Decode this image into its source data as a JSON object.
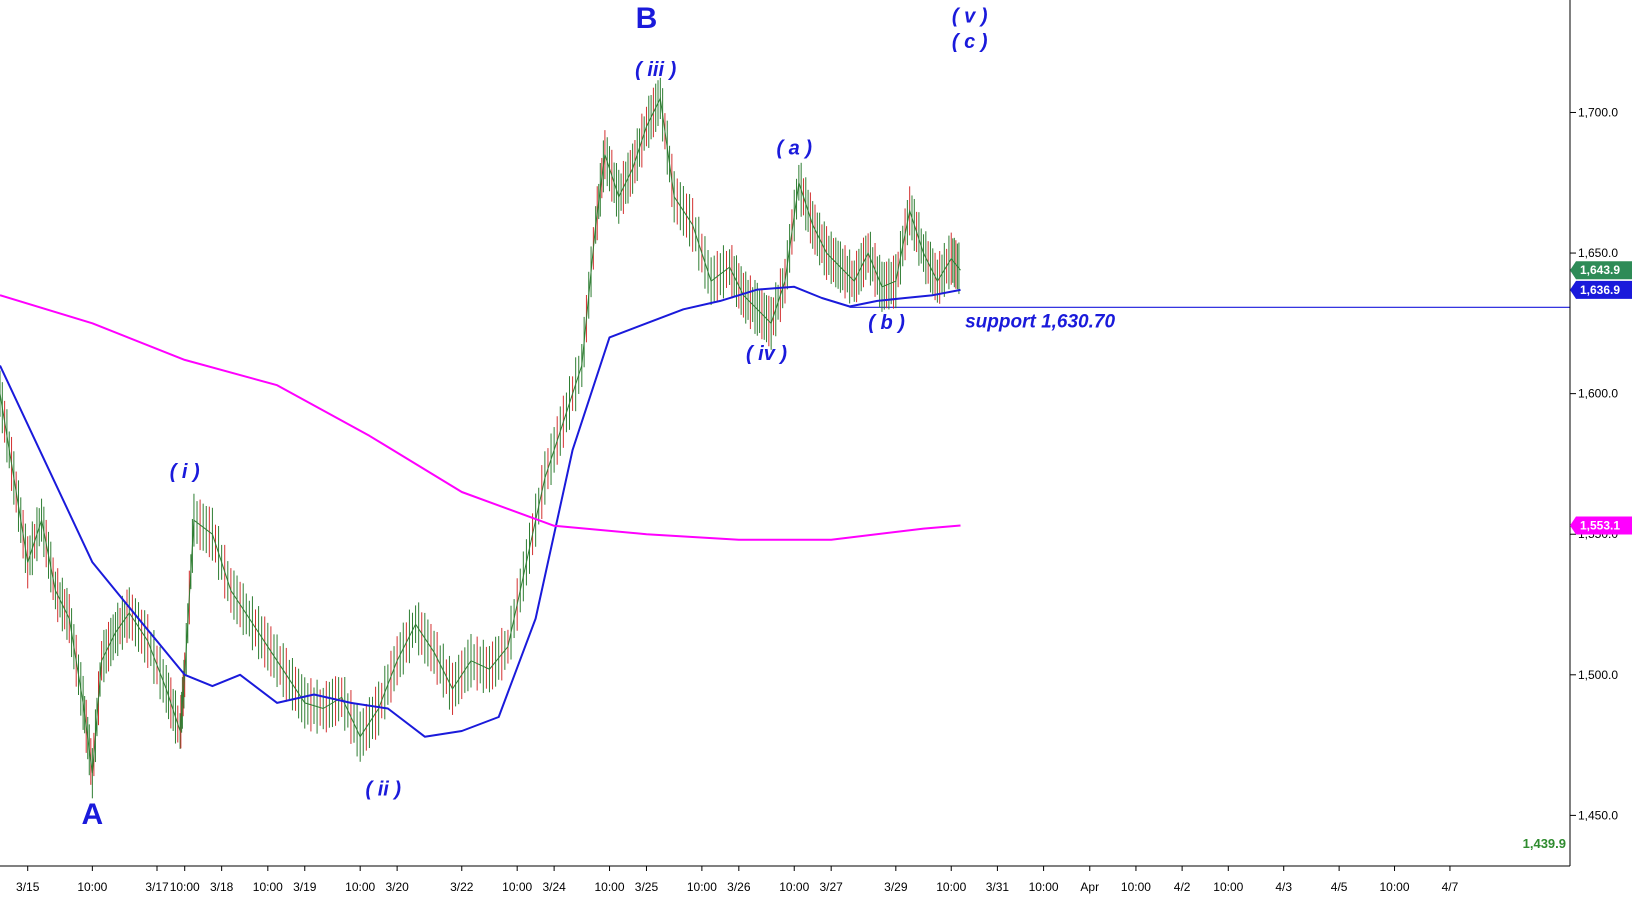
{
  "chart_data": {
    "type": "line",
    "title": "",
    "xlabel": "",
    "ylabel": "",
    "ylim": [
      1432,
      1740
    ],
    "y_ticks": [
      1450.0,
      1500.0,
      1550.0,
      1600.0,
      1650.0,
      1700.0
    ],
    "y_tick_labels": [
      "1,450.0",
      "1,500.0",
      "1,550.0",
      "1,600.0",
      "1,650.0",
      "1,700.0"
    ],
    "x_tick_labels": [
      "3/15",
      "10:00",
      "3/17",
      "10:00",
      "3/18",
      "10:00",
      "3/19",
      "10:00",
      "3/20",
      "3/22",
      "10:00",
      "3/24",
      "10:00",
      "3/25",
      "10:00",
      "3/26",
      "10:00",
      "3/27",
      "3/29",
      "10:00",
      "3/31",
      "10:00",
      "Apr",
      "10:00",
      "4/2",
      "10:00",
      "4/3",
      "4/5",
      "10:00",
      "4/7"
    ],
    "x_tick_positions": [
      0.3,
      1,
      1.7,
      2,
      2.4,
      2.9,
      3.3,
      3.9,
      4.3,
      5.0,
      5.6,
      6.0,
      6.6,
      7.0,
      7.6,
      8.0,
      8.6,
      9.0,
      9.7,
      10.3,
      10.8,
      11.3,
      11.8,
      12.3,
      12.8,
      13.3,
      13.9,
      14.5,
      15.1,
      15.7
    ],
    "series": [
      {
        "kind": "price",
        "color": "#2e7d32",
        "x": [
          0,
          0.15,
          0.3,
          0.45,
          0.6,
          0.75,
          0.9,
          1.0,
          1.1,
          1.25,
          1.4,
          1.6,
          1.8,
          1.95,
          2.0,
          2.1,
          2.3,
          2.5,
          2.7,
          2.9,
          3.1,
          3.3,
          3.5,
          3.7,
          3.9,
          4.1,
          4.3,
          4.5,
          4.7,
          4.9,
          5.1,
          5.3,
          5.5,
          5.7,
          5.9,
          6.1,
          6.3,
          6.45,
          6.55,
          6.7,
          6.85,
          7.0,
          7.15,
          7.3,
          7.5,
          7.7,
          7.9,
          8.05,
          8.2,
          8.35,
          8.5,
          8.65,
          8.8,
          8.95,
          9.1,
          9.25,
          9.4,
          9.55,
          9.7,
          9.85,
          10.0,
          10.15,
          10.3,
          10.4
        ],
        "y": [
          1600,
          1570,
          1540,
          1555,
          1530,
          1520,
          1490,
          1465,
          1505,
          1515,
          1522,
          1512,
          1495,
          1480,
          1500,
          1555,
          1550,
          1530,
          1520,
          1510,
          1500,
          1490,
          1488,
          1492,
          1478,
          1488,
          1505,
          1518,
          1508,
          1495,
          1505,
          1502,
          1510,
          1540,
          1570,
          1590,
          1610,
          1660,
          1685,
          1670,
          1680,
          1695,
          1705,
          1670,
          1660,
          1640,
          1645,
          1635,
          1630,
          1625,
          1640,
          1675,
          1660,
          1650,
          1645,
          1640,
          1650,
          1638,
          1640,
          1665,
          1650,
          1640,
          1648,
          1643.9
        ]
      },
      {
        "kind": "moving-average",
        "color": "#1a1adb",
        "x": [
          0,
          0.5,
          1.0,
          1.5,
          2.0,
          2.3,
          2.6,
          3.0,
          3.4,
          3.8,
          4.2,
          4.6,
          5.0,
          5.4,
          5.8,
          6.2,
          6.6,
          7.0,
          7.4,
          7.8,
          8.2,
          8.6,
          8.9,
          9.2,
          9.5,
          9.8,
          10.1,
          10.4
        ],
        "y": [
          1610,
          1575,
          1540,
          1520,
          1500,
          1496,
          1500,
          1490,
          1493,
          1490,
          1488,
          1478,
          1480,
          1485,
          1520,
          1580,
          1620,
          1625,
          1630,
          1633,
          1637,
          1638,
          1634,
          1631,
          1633,
          1634,
          1635,
          1636.9
        ]
      },
      {
        "kind": "moving-average",
        "color": "#ff00ff",
        "x": [
          0,
          1,
          2,
          3,
          4,
          5,
          6,
          7,
          8,
          9,
          10,
          10.4
        ],
        "y": [
          1635,
          1625,
          1612,
          1603,
          1585,
          1565,
          1553,
          1550,
          1548,
          1548,
          1552,
          1553.1
        ]
      }
    ],
    "annotations": [
      {
        "text": "B",
        "x": 7.0,
        "y": 1730,
        "size": "large"
      },
      {
        "text": "A",
        "x": 1.0,
        "y": 1447,
        "size": "large"
      },
      {
        "text": "( iii )",
        "x": 7.1,
        "y": 1713,
        "size": "small"
      },
      {
        "text": "( v )",
        "x": 10.5,
        "y": 1732,
        "size": "small"
      },
      {
        "text": "( c )",
        "x": 10.5,
        "y": 1723,
        "size": "small"
      },
      {
        "text": "( a )",
        "x": 8.6,
        "y": 1685,
        "size": "small"
      },
      {
        "text": "( i )",
        "x": 2.0,
        "y": 1570,
        "size": "small"
      },
      {
        "text": "( ii )",
        "x": 4.15,
        "y": 1457,
        "size": "small"
      },
      {
        "text": "( iv )",
        "x": 8.3,
        "y": 1612,
        "size": "small"
      },
      {
        "text": "( b )",
        "x": 9.6,
        "y": 1623,
        "size": "small"
      }
    ],
    "support_level": {
      "value": 1630.7,
      "label": "support 1,630.70",
      "color": "#1a1adb"
    },
    "last_value_tags": [
      {
        "text": "1,643.9",
        "value": 1643.9,
        "color": "#2e8b57"
      },
      {
        "text": "1,636.9",
        "value": 1636.9,
        "color": "#1a1adb"
      },
      {
        "text": "1,553.1",
        "value": 1553.1,
        "color": "#ff00ff"
      }
    ],
    "bottom_value_label": {
      "text": "1,439.9",
      "value": 1439.9,
      "color": "#2e8b2e"
    },
    "x_range": [
      0,
      17
    ],
    "grid": false,
    "legend": "none"
  }
}
